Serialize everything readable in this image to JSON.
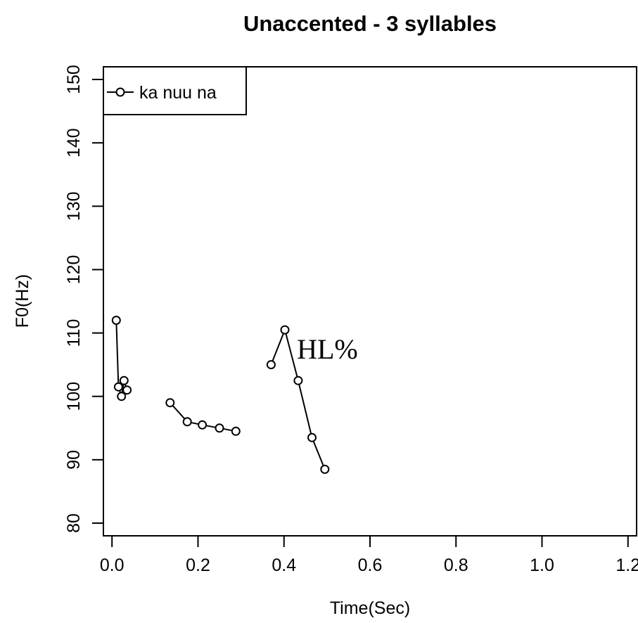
{
  "chart_data": {
    "type": "line",
    "title": "Unaccented - 3 syllables",
    "xlabel": "Time(Sec)",
    "ylabel": "F0(Hz)",
    "xlim": [
      -0.02,
      1.22
    ],
    "ylim": [
      78,
      152
    ],
    "x_ticks": [
      0.0,
      0.2,
      0.4,
      0.6,
      0.8,
      1.0,
      1.2
    ],
    "x_tick_labels": [
      "0.0",
      "0.2",
      "0.4",
      "0.6",
      "0.8",
      "1.0",
      "1.2"
    ],
    "y_ticks": [
      80,
      90,
      100,
      110,
      120,
      130,
      140,
      150
    ],
    "y_tick_labels": [
      "80",
      "90",
      "100",
      "110",
      "120",
      "130",
      "140",
      "150"
    ],
    "grid": false,
    "legend": {
      "position": "top-left",
      "entries": [
        "ka nuu na"
      ]
    },
    "series": [
      {
        "name": "ka nuu na",
        "color": "#000000",
        "marker": "open-circle",
        "segments": [
          [
            [
              0.01,
              112.0
            ],
            [
              0.015,
              101.5
            ],
            [
              0.022,
              100.0
            ],
            [
              0.028,
              102.5
            ],
            [
              0.035,
              101.0
            ]
          ],
          [
            [
              0.135,
              99.0
            ],
            [
              0.175,
              96.0
            ],
            [
              0.21,
              95.5
            ],
            [
              0.25,
              95.0
            ],
            [
              0.288,
              94.5
            ]
          ],
          [
            [
              0.37,
              105.0
            ],
            [
              0.402,
              110.5
            ],
            [
              0.433,
              102.5
            ],
            [
              0.465,
              93.5
            ],
            [
              0.495,
              88.5
            ]
          ]
        ]
      }
    ],
    "annotations": [
      {
        "text": "HL%",
        "x": 0.43,
        "y": 107.5
      }
    ]
  }
}
